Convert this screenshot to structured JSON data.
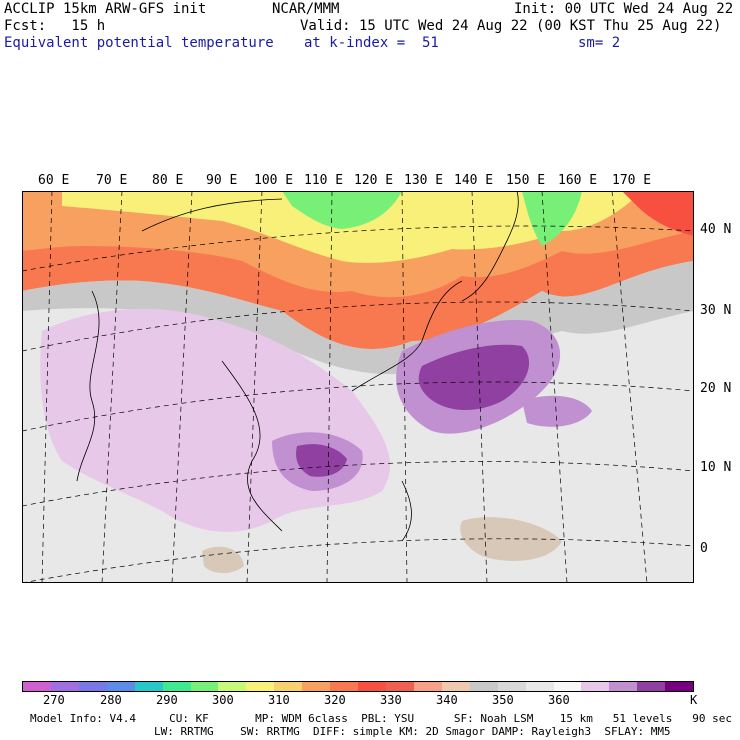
{
  "header": {
    "line1_left": "ACCLIP 15km ARW-GFS init",
    "line1_mid": "NCAR/MMM",
    "line1_right": "Init: 00 UTC Wed 24 Aug 22",
    "line2_left": "Fcst:   15 h",
    "line2_right": "Valid: 15 UTC Wed 24 Aug 22 (00 KST Thu 25 Aug 22)",
    "line3_left": "Equivalent potential temperature",
    "line3_mid": "at k-index =  51",
    "line3_right": "sm= 2"
  },
  "axes": {
    "longitudes": [
      "60 E",
      "70 E",
      "80 E",
      "90 E",
      "100 E",
      "110 E",
      "120 E",
      "130 E",
      "140 E",
      "150 E",
      "160 E",
      "170 E"
    ],
    "latitudes": [
      "40 N",
      "30 N",
      "20 N",
      "10 N",
      "0"
    ]
  },
  "colorbar": {
    "ticks": [
      "270",
      "280",
      "290",
      "300",
      "310",
      "320",
      "330",
      "340",
      "350",
      "360"
    ],
    "unit": "K",
    "colors": [
      "#d060d0",
      "#a070e0",
      "#7878e8",
      "#5c8ce8",
      "#28c8c8",
      "#40e890",
      "#78f078",
      "#c8f878",
      "#f8f078",
      "#f8d070",
      "#f8a060",
      "#f87850",
      "#f85040",
      "#f06050",
      "#f8a088",
      "#f0c8b0",
      "#c8c8c8",
      "#d8d8d8",
      "#e8e8e8",
      "#f8f8f8",
      "#e8c8e8",
      "#c090d0",
      "#9040a0",
      "#780080"
    ]
  },
  "footer": {
    "line1": "Model Info: V4.4     CU: KF       MP: WDM 6class  PBL: YSU      SF: Noah LSM    15 km   51 levels   90 sec",
    "line2": "LW: RRTMG    SW: RRTMG  DIFF: simple KM: 2D Smagor DAMP: Rayleigh3  SFLAY: MM5"
  }
}
